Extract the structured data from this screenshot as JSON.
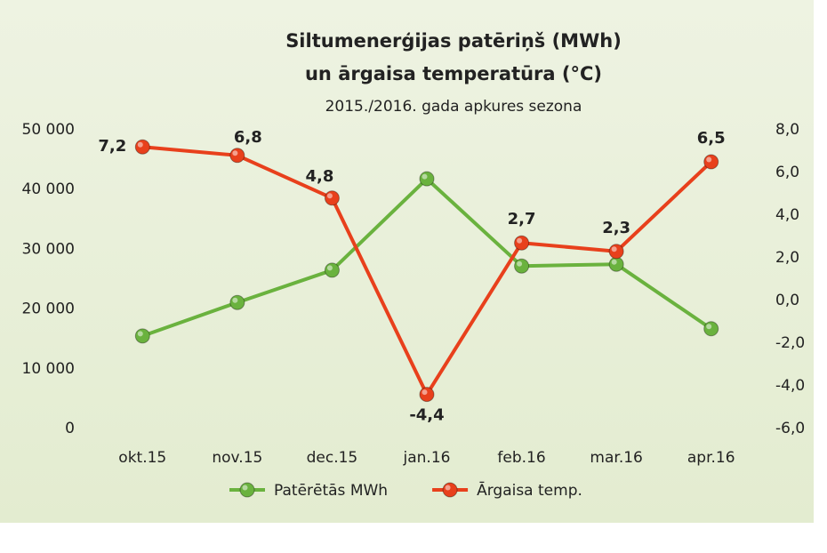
{
  "chart_data": {
    "type": "line",
    "title": [
      "Siltumenerģijas patēriņš (MWh)",
      "un ārgaisa temperatūra (°C)"
    ],
    "subtitle": "2015./2016. gada apkures sezona",
    "categories": [
      "okt.15",
      "nov.15",
      "dec.15",
      "jan.16",
      "feb.16",
      "mar.16",
      "apr.16"
    ],
    "series": [
      {
        "name": "Patērētās MWh",
        "color": "#6ab23e",
        "values": [
          15500,
          21100,
          26500,
          41800,
          27200,
          27500,
          16700
        ]
      },
      {
        "name": "Ārgaisa temp.",
        "color": "#e8401c",
        "axis": "y2",
        "values": [
          7.2,
          6.8,
          4.8,
          -4.4,
          2.7,
          2.3,
          6.5
        ],
        "value_labels": [
          "7,2",
          "6,8",
          "4,8",
          "-4,4",
          "2,7",
          "2,3",
          "6,5"
        ]
      }
    ],
    "ylim": [
      0,
      50000
    ],
    "yticks": [
      0,
      {
        "value": 10000,
        "label": "10 000"
      },
      {
        "value": 20000,
        "label": "20 000"
      },
      {
        "value": 30000,
        "label": "30 000"
      },
      {
        "value": 40000,
        "label": "40 000"
      },
      {
        "value": 50000,
        "label": "50 000"
      }
    ],
    "y2lim": [
      -6,
      8
    ],
    "y2ticks": [
      {
        "value": -6,
        "label": "-6,0"
      },
      {
        "value": -4,
        "label": "-4,0"
      },
      {
        "value": -2,
        "label": "-2,0"
      },
      {
        "value": 0,
        "label": "0,0"
      },
      {
        "value": 2,
        "label": "2,0"
      },
      {
        "value": 4,
        "label": "4,0"
      },
      {
        "value": 6,
        "label": "6,0"
      },
      {
        "value": 8,
        "label": "8,0"
      }
    ],
    "grid": false,
    "legend": "bottom"
  }
}
